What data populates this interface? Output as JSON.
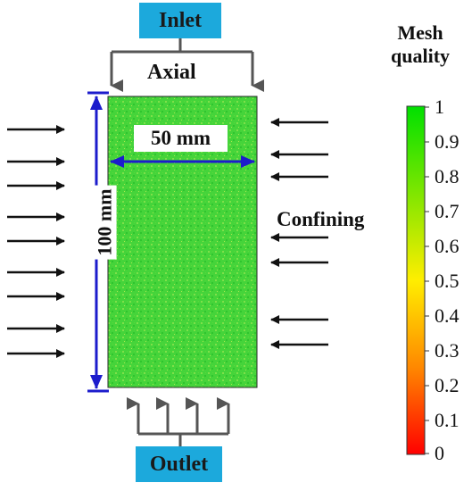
{
  "labels": {
    "inlet": "Inlet",
    "outlet": "Outlet",
    "axial": "Axial",
    "confining": "Confining",
    "width_dim": "50 mm",
    "height_dim": "100 mm"
  },
  "legend": {
    "title_line1": "Mesh",
    "title_line2": "quality",
    "ticks": [
      "1",
      "0.9",
      "0.8",
      "0.7",
      "0.6",
      "0.5",
      "0.4",
      "0.3",
      "0.2",
      "0.1",
      "0"
    ]
  },
  "colors": {
    "label_box": "#1ca9dc",
    "dimension": "#1c1ccc",
    "specimen": "#3fd03a",
    "arrow": "#111111"
  }
}
